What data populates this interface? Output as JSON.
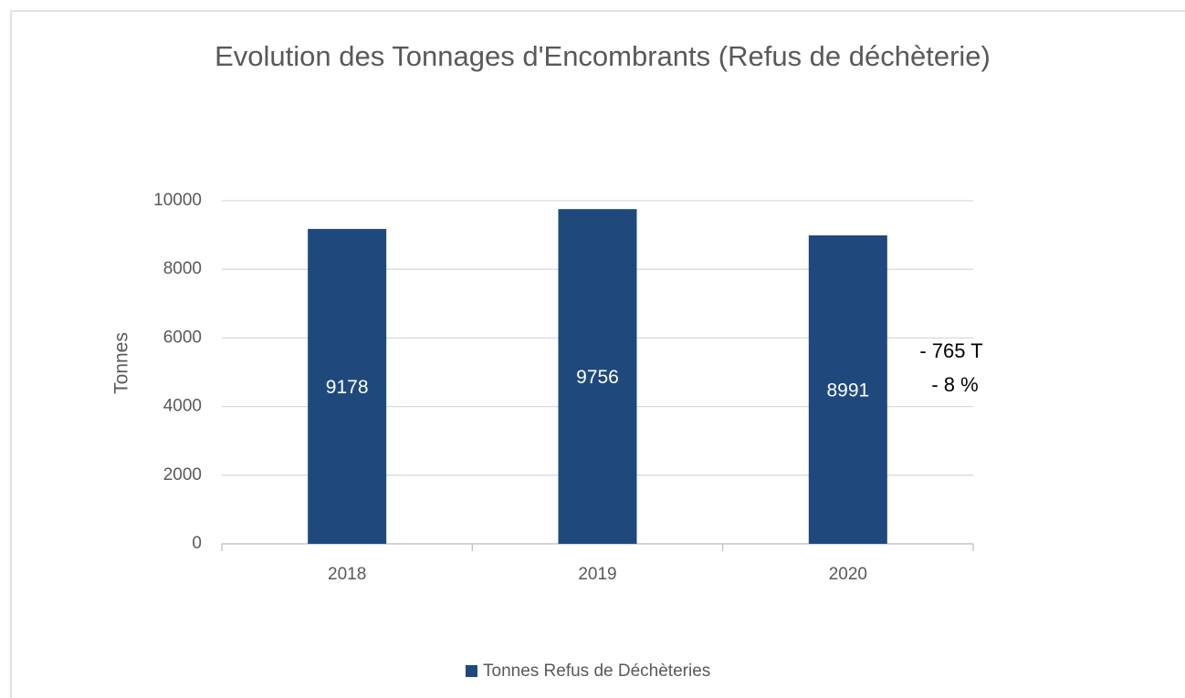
{
  "chart_data": {
    "type": "bar",
    "title": "Evolution des Tonnages d'Encombrants (Refus de déchèterie)",
    "y_label": "Tonnes",
    "categories": [
      "2018",
      "2019",
      "2020"
    ],
    "series": [
      {
        "name": "Tonnes Refus de Déchèteries",
        "color": "#1f497d",
        "values": [
          9178,
          9756,
          8991
        ]
      }
    ],
    "ylim": [
      0,
      10000
    ],
    "yticks": [
      0,
      2000,
      4000,
      6000,
      8000,
      10000
    ],
    "grid": true,
    "legend": "bottom",
    "annotations": [
      "- 765 T",
      "- 8 %"
    ]
  }
}
